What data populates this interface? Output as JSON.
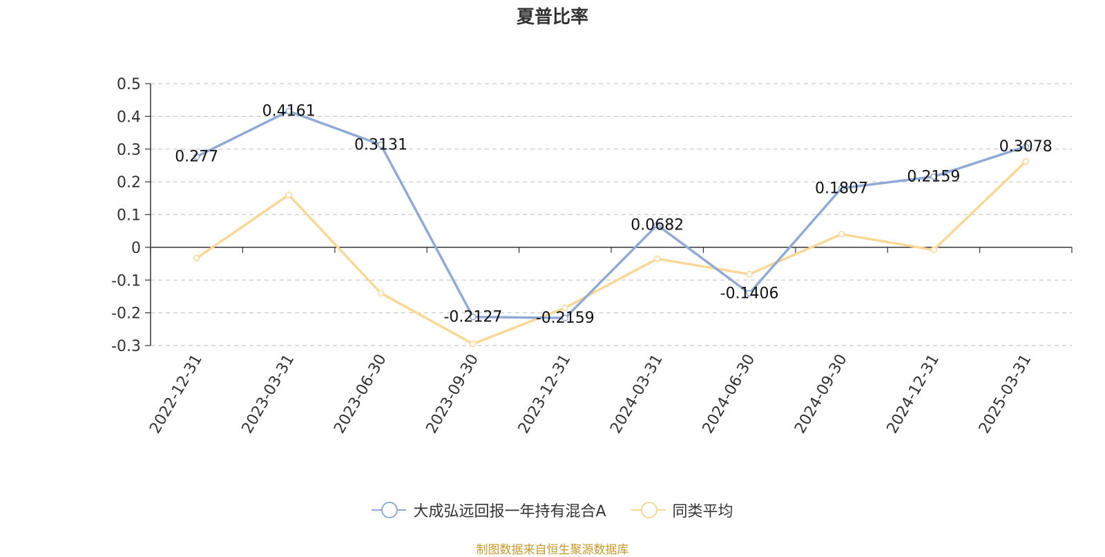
{
  "chart_data": {
    "type": "line",
    "title": "夏普比率",
    "categories": [
      "2022-12-31",
      "2023-03-31",
      "2023-06-30",
      "2023-09-30",
      "2023-12-31",
      "2024-03-31",
      "2024-06-30",
      "2024-09-30",
      "2024-12-31",
      "2025-03-31"
    ],
    "series": [
      {
        "name": "大成弘远回报一年持有混合A",
        "color": "#8faad6",
        "values": [
          0.277,
          0.4161,
          0.3131,
          -0.2127,
          -0.2159,
          0.0682,
          -0.1406,
          0.1807,
          0.2159,
          0.3078
        ],
        "labels": [
          "0.277",
          "0.4161",
          "0.3131",
          "-0.2127",
          "-0.2159",
          "0.0682",
          "-0.1406",
          "0.1807",
          "0.2159",
          "0.3078"
        ],
        "show_labels": true
      },
      {
        "name": "同类平均",
        "color": "#fad794",
        "values": [
          -0.033,
          0.16,
          -0.14,
          -0.295,
          -0.185,
          -0.035,
          -0.082,
          0.04,
          -0.008,
          0.262
        ],
        "show_labels": false
      }
    ],
    "ylim": [
      -0.3,
      0.5
    ],
    "yticks": [
      "-0.3",
      "-0.2",
      "-0.1",
      "0",
      "0.1",
      "0.2",
      "0.3",
      "0.4",
      "0.5"
    ],
    "grid": true,
    "legend_position": "bottom"
  },
  "source": "制图数据来自恒生聚源数据库"
}
